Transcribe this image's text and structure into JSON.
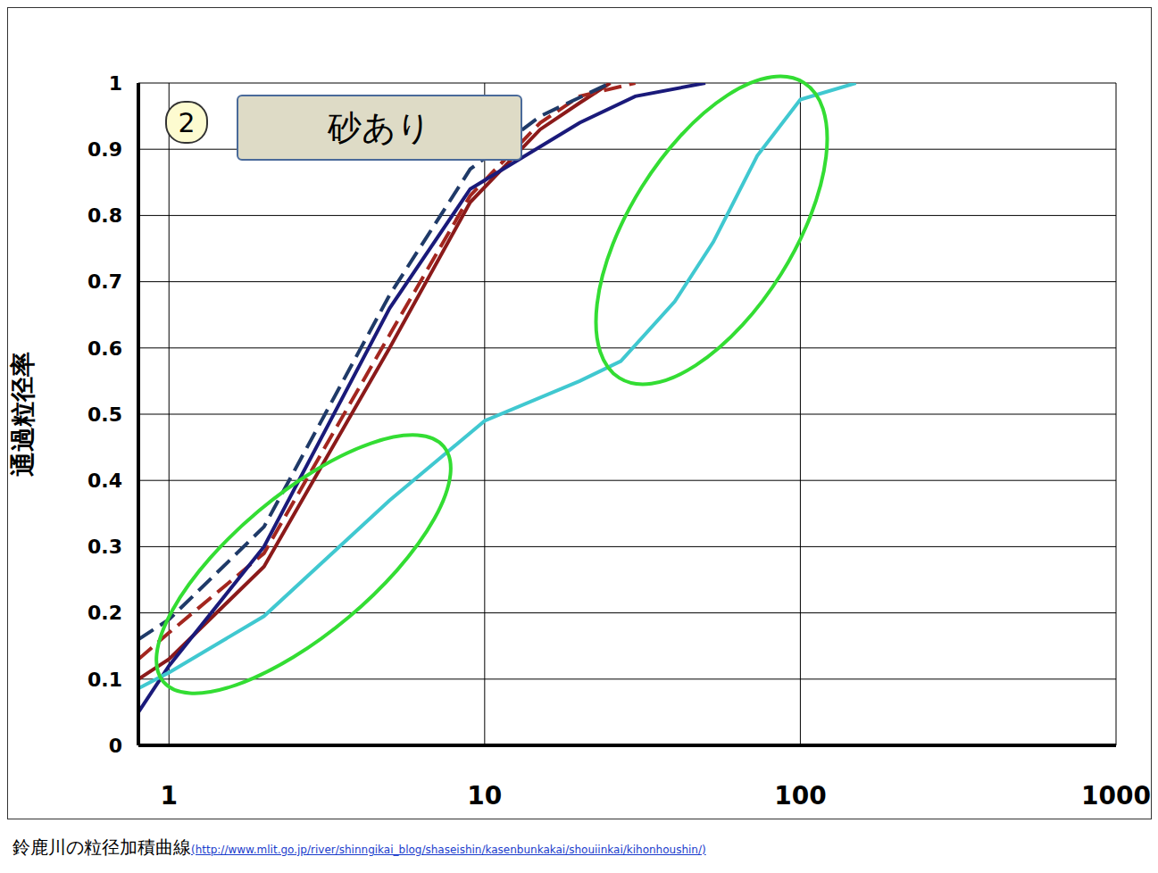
{
  "chart_data": {
    "type": "line",
    "panel_number": "2",
    "panel_label": "砂あり",
    "ylabel": "通過粒径率",
    "caption": "鈴鹿川の粒径加積曲線",
    "source": "(http://www.mlit.go.jp/river/shinngikai_blog/shaseishin/kasenbunkakai/shouiinkai/kihonhoushin/)",
    "log": "x",
    "grid": true,
    "xlim": [
      0.8,
      1000
    ],
    "xticks": [
      1,
      10,
      100,
      1000
    ],
    "ylim": [
      0,
      1
    ],
    "yticks": [
      0,
      0.1,
      0.2,
      0.3,
      0.4,
      0.5,
      0.6,
      0.7,
      0.8,
      0.9,
      1
    ],
    "series": [
      {
        "color": "#8b1a1a",
        "line_style": "solid",
        "x": [
          0.8,
          1,
          2,
          4,
          5,
          9,
          15,
          20,
          25
        ],
        "values": [
          0.1,
          0.13,
          0.27,
          0.52,
          0.6,
          0.82,
          0.93,
          0.97,
          1
        ]
      },
      {
        "color": "#a3261f",
        "line_style": "dashed",
        "x": [
          0.8,
          1,
          2,
          5,
          9,
          15,
          20,
          30
        ],
        "values": [
          0.13,
          0.17,
          0.29,
          0.62,
          0.83,
          0.94,
          0.98,
          1
        ]
      },
      {
        "color": "#1f3a68",
        "line_style": "dashed",
        "x": [
          0.8,
          1,
          2,
          5,
          9,
          15,
          25
        ],
        "values": [
          0.16,
          0.19,
          0.33,
          0.68,
          0.87,
          0.95,
          1
        ]
      },
      {
        "color": "#1a1a7a",
        "line_style": "solid",
        "x": [
          0.8,
          1,
          2,
          5,
          9,
          20,
          30,
          50
        ],
        "values": [
          0.05,
          0.12,
          0.3,
          0.66,
          0.84,
          0.94,
          0.98,
          1
        ]
      },
      {
        "color": "#40c8d0",
        "line_style": "solid",
        "x": [
          0.8,
          1,
          2,
          5,
          10,
          20,
          27,
          40,
          53,
          73,
          100,
          150
        ],
        "values": [
          0.086,
          0.11,
          0.195,
          0.37,
          0.49,
          0.55,
          0.58,
          0.67,
          0.76,
          0.89,
          0.975,
          1
        ]
      }
    ]
  }
}
